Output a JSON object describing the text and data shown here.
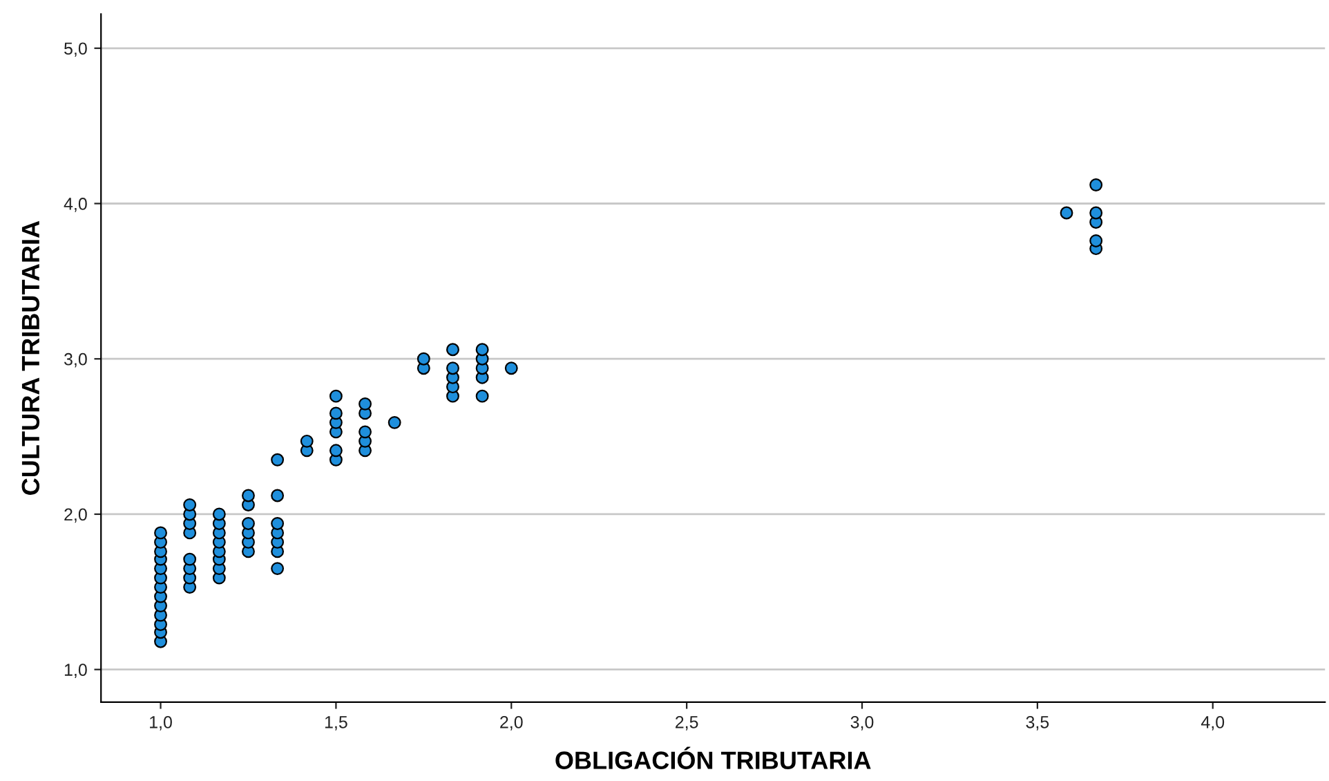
{
  "chart_data": {
    "type": "scatter",
    "xlabel": "OBLIGACIÓN TRIBUTARIA",
    "ylabel": "CULTURA TRIBUTARIA",
    "xlim": [
      0.83,
      4.32
    ],
    "ylim": [
      0.79,
      5.22
    ],
    "xticks": [
      {
        "value": 1.0,
        "label": "1,0"
      },
      {
        "value": 1.5,
        "label": "1,5"
      },
      {
        "value": 2.0,
        "label": "2,0"
      },
      {
        "value": 2.5,
        "label": "2,5"
      },
      {
        "value": 3.0,
        "label": "3,0"
      },
      {
        "value": 3.5,
        "label": "3,5"
      },
      {
        "value": 4.0,
        "label": "4,0"
      }
    ],
    "yticks": [
      {
        "value": 1.0,
        "label": "1,0"
      },
      {
        "value": 2.0,
        "label": "2,0"
      },
      {
        "value": 3.0,
        "label": "3,0"
      },
      {
        "value": 4.0,
        "label": "4,0"
      },
      {
        "value": 5.0,
        "label": "5,0"
      }
    ],
    "grid": "y",
    "marker": "circle",
    "series": [
      {
        "color": "#1f8fdc",
        "x": [
          1,
          1,
          1,
          1,
          1,
          1,
          1,
          1,
          1,
          1,
          1,
          1,
          1,
          1.083,
          1.083,
          1.083,
          1.083,
          1.083,
          1.083,
          1.083,
          1.083,
          1.167,
          1.167,
          1.167,
          1.167,
          1.167,
          1.167,
          1.167,
          1.167,
          1.25,
          1.25,
          1.25,
          1.25,
          1.25,
          1.25,
          1.333,
          1.333,
          1.333,
          1.333,
          1.333,
          1.333,
          1.333,
          1.417,
          1.417,
          1.5,
          1.5,
          1.5,
          1.5,
          1.5,
          1.5,
          1.583,
          1.583,
          1.583,
          1.583,
          1.583,
          1.667,
          1.75,
          1.75,
          1.833,
          1.833,
          1.833,
          1.833,
          1.833,
          1.917,
          1.917,
          1.917,
          1.917,
          1.917,
          2.0,
          3.583,
          3.667,
          3.667,
          3.667,
          3.667,
          3.667
        ],
        "values": [
          1.18,
          1.24,
          1.29,
          1.35,
          1.41,
          1.47,
          1.53,
          1.59,
          1.65,
          1.71,
          1.76,
          1.82,
          1.88,
          1.53,
          1.59,
          1.65,
          1.71,
          1.88,
          1.94,
          2.0,
          2.06,
          1.59,
          1.65,
          1.71,
          1.76,
          1.82,
          1.88,
          1.94,
          2.0,
          1.76,
          1.82,
          1.88,
          1.94,
          2.06,
          2.12,
          1.65,
          1.76,
          1.82,
          1.88,
          1.94,
          2.12,
          2.35,
          2.41,
          2.47,
          2.35,
          2.41,
          2.53,
          2.59,
          2.65,
          2.76,
          2.41,
          2.47,
          2.53,
          2.65,
          2.71,
          2.59,
          2.94,
          3.0,
          2.76,
          2.82,
          2.88,
          2.94,
          3.06,
          2.76,
          2.88,
          2.94,
          3.0,
          3.06,
          2.94,
          3.94,
          3.71,
          3.76,
          3.88,
          3.94,
          4.12
        ]
      }
    ]
  }
}
